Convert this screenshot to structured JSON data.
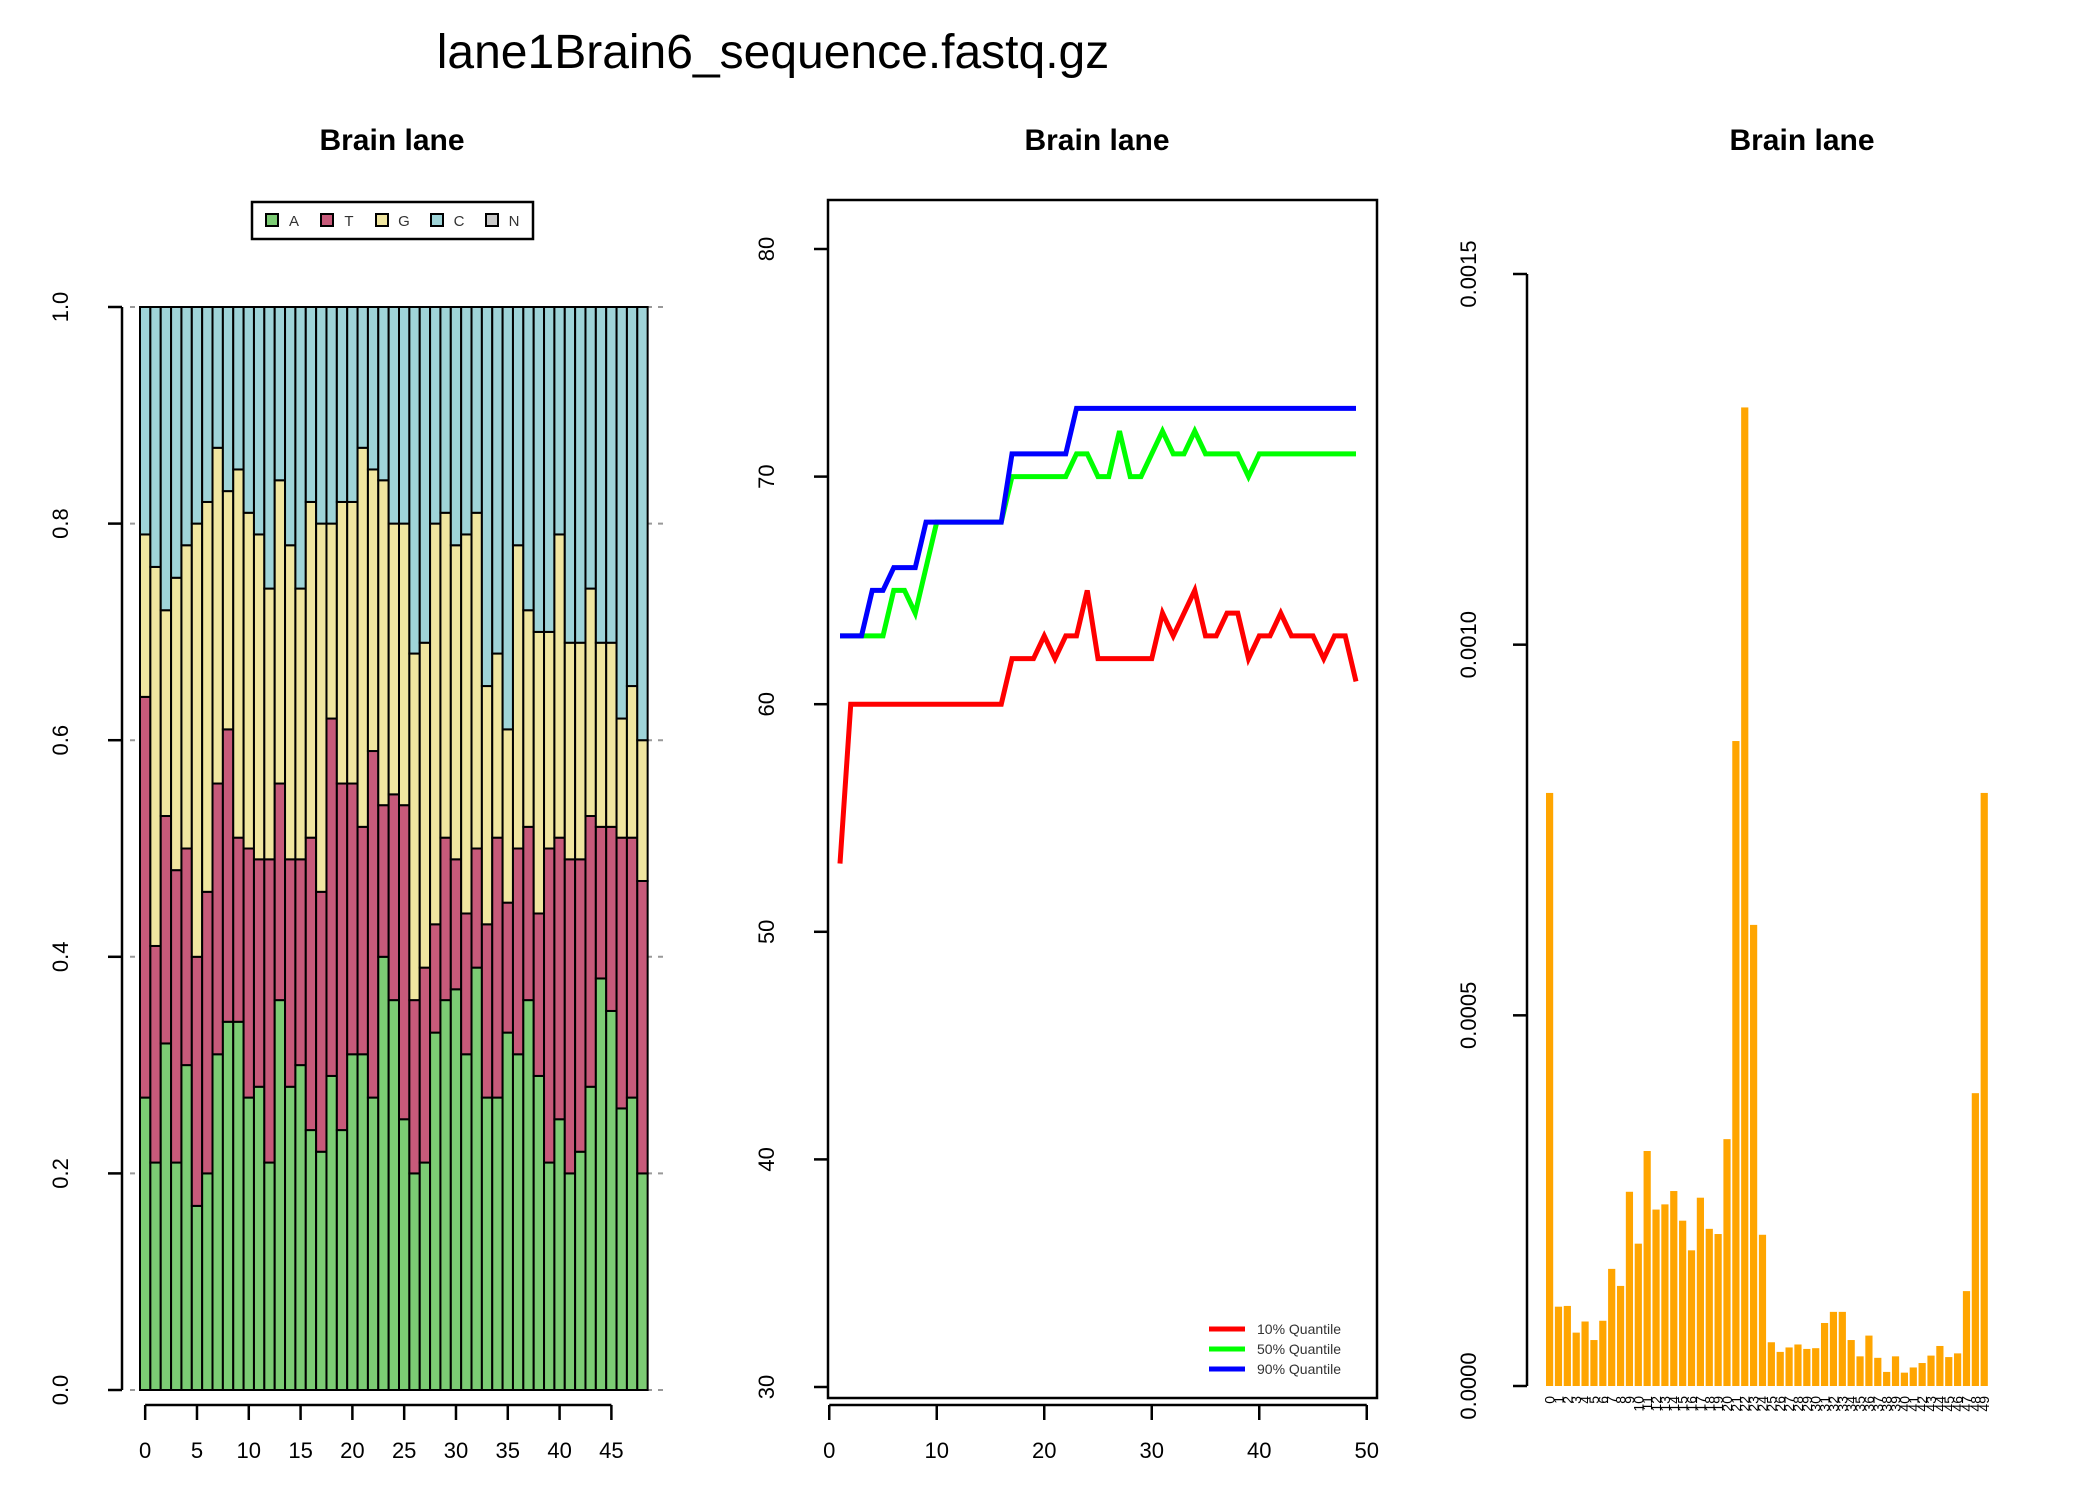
{
  "page_title": "lane1Brain6_sequence.fastq.gz",
  "colors": {
    "A": "#7ccc74",
    "T": "#c75a7a",
    "G": "#f0e6a0",
    "C": "#9fd4d8",
    "N": "#c8c8c8",
    "q10": "#ff0000",
    "q50": "#00ff00",
    "q90": "#0000ff",
    "bar": "#ffa500"
  },
  "chart_data": [
    {
      "type": "bar",
      "stacked": true,
      "title": "Brain lane",
      "xlabel": "",
      "ylabel": "",
      "ylim": [
        0,
        1
      ],
      "xticks": [
        0,
        5,
        10,
        15,
        20,
        25,
        30,
        35,
        40,
        45
      ],
      "yticks": [
        "0.0",
        "0.2",
        "0.4",
        "0.6",
        "0.8",
        "1.0"
      ],
      "legend": [
        "A",
        "T",
        "G",
        "C",
        "N"
      ],
      "legend_position": "top",
      "grid": true,
      "cycles": [
        0,
        1,
        2,
        3,
        4,
        5,
        6,
        7,
        8,
        9,
        10,
        11,
        12,
        13,
        14,
        15,
        16,
        17,
        18,
        19,
        20,
        21,
        22,
        23,
        24,
        25,
        26,
        27,
        28,
        29,
        30,
        31,
        32,
        33,
        34,
        35,
        36,
        37,
        38,
        39,
        40,
        41,
        42,
        43,
        44,
        45,
        46,
        47,
        48
      ],
      "series": [
        {
          "name": "A",
          "values": [
            0.27,
            0.21,
            0.32,
            0.21,
            0.3,
            0.17,
            0.2,
            0.31,
            0.34,
            0.34,
            0.27,
            0.28,
            0.21,
            0.36,
            0.28,
            0.3,
            0.24,
            0.22,
            0.29,
            0.24,
            0.31,
            0.31,
            0.27,
            0.4,
            0.36,
            0.25,
            0.2,
            0.21,
            0.33,
            0.36,
            0.37,
            0.31,
            0.39,
            0.27,
            0.27,
            0.33,
            0.31,
            0.36,
            0.29,
            0.21,
            0.25,
            0.2,
            0.22,
            0.28,
            0.38,
            0.35,
            0.26,
            0.27,
            0.2
          ]
        },
        {
          "name": "T",
          "values": [
            0.37,
            0.2,
            0.21,
            0.27,
            0.2,
            0.23,
            0.26,
            0.25,
            0.27,
            0.17,
            0.23,
            0.21,
            0.28,
            0.2,
            0.21,
            0.19,
            0.27,
            0.24,
            0.33,
            0.32,
            0.25,
            0.21,
            0.32,
            0.14,
            0.19,
            0.29,
            0.16,
            0.18,
            0.1,
            0.15,
            0.12,
            0.13,
            0.11,
            0.16,
            0.24,
            0.12,
            0.19,
            0.16,
            0.15,
            0.29,
            0.26,
            0.29,
            0.27,
            0.25,
            0.14,
            0.17,
            0.25,
            0.24,
            0.27
          ]
        },
        {
          "name": "G",
          "values": [
            0.15,
            0.35,
            0.19,
            0.27,
            0.28,
            0.4,
            0.36,
            0.31,
            0.22,
            0.34,
            0.31,
            0.3,
            0.25,
            0.28,
            0.29,
            0.25,
            0.31,
            0.34,
            0.18,
            0.26,
            0.26,
            0.35,
            0.26,
            0.3,
            0.25,
            0.26,
            0.32,
            0.3,
            0.37,
            0.3,
            0.29,
            0.35,
            0.31,
            0.22,
            0.17,
            0.16,
            0.28,
            0.2,
            0.26,
            0.2,
            0.28,
            0.2,
            0.2,
            0.21,
            0.17,
            0.17,
            0.11,
            0.14,
            0.13
          ]
        },
        {
          "name": "C",
          "values": [
            0.21,
            0.24,
            0.28,
            0.25,
            0.22,
            0.2,
            0.18,
            0.13,
            0.17,
            0.15,
            0.19,
            0.21,
            0.26,
            0.16,
            0.22,
            0.26,
            0.18,
            0.2,
            0.2,
            0.18,
            0.18,
            0.13,
            0.15,
            0.16,
            0.2,
            0.2,
            0.32,
            0.31,
            0.2,
            0.19,
            0.22,
            0.21,
            0.19,
            0.35,
            0.32,
            0.39,
            0.22,
            0.28,
            0.3,
            0.3,
            0.21,
            0.31,
            0.31,
            0.26,
            0.31,
            0.31,
            0.38,
            0.35,
            0.4
          ]
        },
        {
          "name": "N",
          "values": [
            0,
            0,
            0,
            0,
            0,
            0,
            0,
            0,
            0,
            0,
            0,
            0,
            0,
            0,
            0,
            0,
            0,
            0,
            0,
            0,
            0,
            0,
            0,
            0,
            0,
            0,
            0,
            0,
            0,
            0,
            0,
            0,
            0,
            0,
            0,
            0,
            0,
            0,
            0,
            0,
            0,
            0,
            0,
            0,
            0,
            0,
            0,
            0,
            0
          ]
        }
      ]
    },
    {
      "type": "line",
      "title": "Brain lane",
      "xlabel": "",
      "ylabel": "",
      "xlim": [
        1,
        49
      ],
      "ylim": [
        30,
        80
      ],
      "xticks": [
        0,
        10,
        20,
        30,
        40,
        50
      ],
      "yticks": [
        30,
        40,
        50,
        60,
        70,
        80
      ],
      "legend_position": "bottom-right",
      "x": [
        1,
        2,
        3,
        4,
        5,
        6,
        7,
        8,
        9,
        10,
        11,
        12,
        13,
        14,
        15,
        16,
        17,
        18,
        19,
        20,
        21,
        22,
        23,
        24,
        25,
        26,
        27,
        28,
        29,
        30,
        31,
        32,
        33,
        34,
        35,
        36,
        37,
        38,
        39,
        40,
        41,
        42,
        43,
        44,
        45,
        46,
        47,
        48,
        49
      ],
      "series": [
        {
          "name": "10% Quantile",
          "values": [
            53,
            60,
            60,
            60,
            60,
            60,
            60,
            60,
            60,
            60,
            60,
            60,
            60,
            60,
            60,
            60,
            62,
            62,
            62,
            63,
            62,
            63,
            63,
            65,
            62,
            62,
            62,
            62,
            62,
            62,
            64,
            63,
            64,
            65,
            63,
            63,
            64,
            64,
            62,
            63,
            63,
            64,
            63,
            63,
            63,
            62,
            63,
            63,
            61
          ]
        },
        {
          "name": "50% Quantile",
          "values": [
            63,
            63,
            63,
            63,
            63,
            65,
            65,
            64,
            66,
            68,
            68,
            68,
            68,
            68,
            68,
            68,
            70,
            70,
            70,
            70,
            70,
            70,
            71,
            71,
            70,
            70,
            72,
            70,
            70,
            71,
            72,
            71,
            71,
            72,
            71,
            71,
            71,
            71,
            70,
            71,
            71,
            71,
            71,
            71,
            71,
            71,
            71,
            71,
            71
          ]
        },
        {
          "name": "90% Quantile",
          "values": [
            63,
            63,
            63,
            65,
            65,
            66,
            66,
            66,
            68,
            68,
            68,
            68,
            68,
            68,
            68,
            68,
            71,
            71,
            71,
            71,
            71,
            71,
            73,
            73,
            73,
            73,
            73,
            73,
            73,
            73,
            73,
            73,
            73,
            73,
            73,
            73,
            73,
            73,
            73,
            73,
            73,
            73,
            73,
            73,
            73,
            73,
            73,
            73,
            73
          ]
        }
      ]
    },
    {
      "type": "bar",
      "title": "Brain lane",
      "xlabel": "",
      "ylabel": "",
      "ylim": [
        0,
        0.0015
      ],
      "yticks": [
        "0.0000",
        "0.0005",
        "0.0010",
        "0.0015"
      ],
      "categories": [
        "0",
        "1",
        "2",
        "3",
        "4",
        "5",
        "6",
        "7",
        "8",
        "9",
        "10",
        "11",
        "12",
        "13",
        "14",
        "15",
        "16",
        "17",
        "18",
        "19",
        "20",
        "21",
        "22",
        "23",
        "24",
        "25",
        "26",
        "27",
        "28",
        "29",
        "30",
        "31",
        "32",
        "33",
        "34",
        "35",
        "36",
        "37",
        "38",
        "39",
        "40",
        "41",
        "42",
        "43",
        "44",
        "45",
        "46",
        "47",
        "48",
        "49"
      ],
      "values": [
        0.0008,
        0.000107,
        0.000108,
        7.2e-05,
        8.7e-05,
        6.2e-05,
        8.8e-05,
        0.000158,
        0.000135,
        0.000262,
        0.000192,
        0.000317,
        0.000238,
        0.000245,
        0.000263,
        0.000223,
        0.000183,
        0.000254,
        0.000212,
        0.000205,
        0.000333,
        0.00087,
        0.00132,
        0.000622,
        0.000204,
        5.9e-05,
        4.6e-05,
        5.2e-05,
        5.6e-05,
        5e-05,
        5.1e-05,
        8.5e-05,
        0.0001,
        0.0001,
        6.2e-05,
        4e-05,
        6.8e-05,
        3.8e-05,
        1.9e-05,
        4e-05,
        1.8e-05,
        2.5e-05,
        3.1e-05,
        4.1e-05,
        5.4e-05,
        3.9e-05,
        4.4e-05,
        0.000128,
        0.000395,
        0.0008
      ]
    }
  ]
}
